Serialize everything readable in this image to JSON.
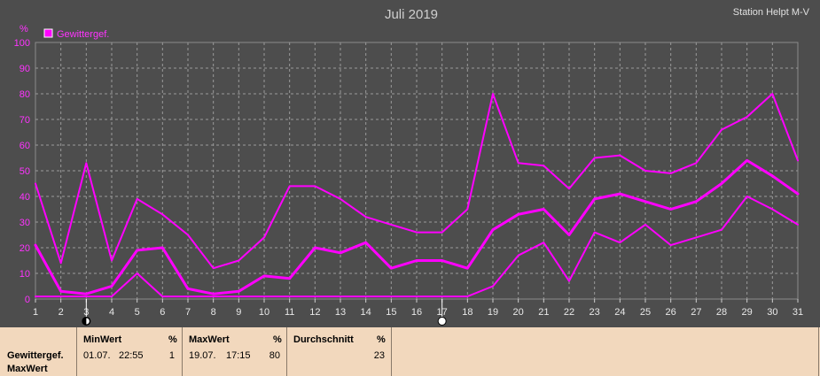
{
  "chart_data": {
    "type": "line",
    "title": "Juli 2019",
    "station": "Station Helpt M-V",
    "ylabel": "%",
    "ylim": [
      0,
      100
    ],
    "yticks": [
      0,
      10,
      20,
      30,
      40,
      50,
      60,
      70,
      80,
      90,
      100
    ],
    "x": [
      1,
      2,
      3,
      4,
      5,
      6,
      7,
      8,
      9,
      10,
      11,
      12,
      13,
      14,
      15,
      16,
      17,
      18,
      19,
      20,
      21,
      22,
      23,
      24,
      25,
      26,
      27,
      28,
      29,
      30,
      31
    ],
    "legend": "Gewittergef.",
    "legend_position": "top-left",
    "grid": true,
    "series": [
      {
        "role": "max",
        "values": [
          45,
          14,
          53,
          15,
          39,
          33,
          25,
          12,
          15,
          24,
          44,
          44,
          39,
          32,
          29,
          26,
          26,
          35,
          80,
          53,
          52,
          43,
          55,
          56,
          50,
          49,
          53,
          66,
          71,
          80,
          54
        ]
      },
      {
        "role": "mean",
        "values": [
          21,
          3,
          2,
          5,
          19,
          20,
          4,
          2,
          3,
          9,
          8,
          20,
          18,
          22,
          12,
          15,
          15,
          12,
          27,
          33,
          35,
          25,
          39,
          41,
          38,
          35,
          38,
          45,
          54,
          48,
          41
        ]
      },
      {
        "role": "min",
        "values": [
          1,
          1,
          1,
          1,
          10,
          1,
          1,
          1,
          1,
          1,
          1,
          1,
          1,
          1,
          1,
          1,
          1,
          1,
          5,
          17,
          22,
          7,
          26,
          22,
          29,
          21,
          24,
          27,
          40,
          35,
          29
        ]
      }
    ],
    "colors": {
      "series": "#ff00ff",
      "grid": "#9a9a9a",
      "background": "#4d4d4d"
    },
    "markers": [
      {
        "day": 3,
        "icon": "half-moon-icon"
      },
      {
        "day": 17,
        "icon": "full-moon-icon"
      }
    ]
  },
  "stats": {
    "row_label_1": "Gewittergef.",
    "row_label_2": "MaxWert",
    "min": {
      "header": "MinWert",
      "unit": "%",
      "date": "01.07.",
      "time": "22:55",
      "value": "1"
    },
    "max": {
      "header": "MaxWert",
      "unit": "%",
      "date": "19.07.",
      "time": "17:15",
      "value": "80"
    },
    "avg": {
      "header": "Durchschnitt",
      "unit": "%",
      "value": "23"
    }
  }
}
